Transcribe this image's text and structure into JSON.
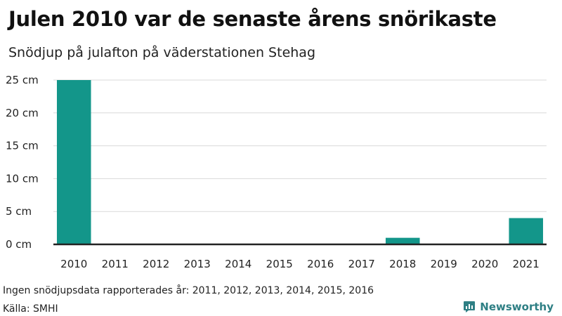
{
  "title": "Julen 2010 var de senaste årens snörikaste",
  "subtitle": "Snödjup på julafton på väderstationen Stehag",
  "note": "Ingen snödjupsdata rapporterades år: 2011, 2012, 2013, 2014, 2015, 2016",
  "source": "Källa: SMHI",
  "brand": {
    "name": "Newsworthy",
    "icon": "bar-chart-icon",
    "color": "#2e7f84"
  },
  "colors": {
    "bar": "#13968a",
    "grid": "#d9d9d9",
    "baseline": "#222222"
  },
  "chart_data": {
    "type": "bar",
    "categories": [
      "2010",
      "2011",
      "2012",
      "2013",
      "2014",
      "2015",
      "2016",
      "2017",
      "2018",
      "2019",
      "2020",
      "2021"
    ],
    "values": [
      25,
      0,
      0,
      0,
      0,
      0,
      0,
      0,
      1,
      0,
      0,
      4
    ],
    "ylim": [
      0,
      25
    ],
    "yticks": [
      0,
      5,
      10,
      15,
      20,
      25
    ],
    "ytick_labels": [
      "0 cm",
      "5 cm",
      "10 cm",
      "15 cm",
      "20 cm",
      "25 cm"
    ],
    "grid": true,
    "xlabel": "",
    "ylabel": ""
  }
}
